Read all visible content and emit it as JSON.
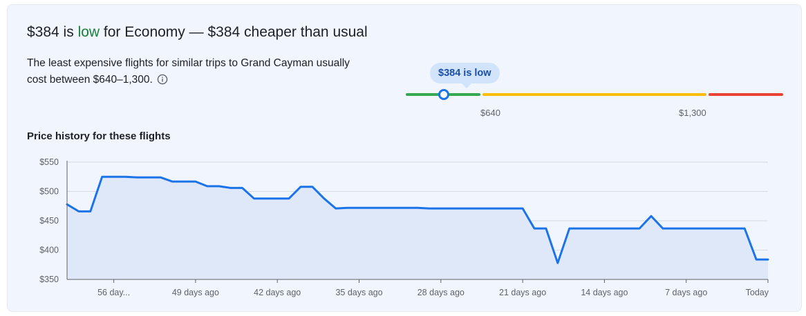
{
  "header": {
    "price": "$384",
    "is_word": " is ",
    "status_word": "low",
    "rest": " for Economy — $384 cheaper than usual"
  },
  "description": "The least expensive flights for similar trips to Grand Cayman usually cost between $640–1,300.",
  "gauge": {
    "bubble_text": "$384 is low",
    "low_label": "$640",
    "high_label": "$1,300",
    "colors": {
      "low": "#34a853",
      "typical": "#fbbc04",
      "high": "#ea4335"
    }
  },
  "chart_title": "Price history for these flights",
  "chart_data": {
    "type": "area",
    "title": "Price history for these flights",
    "xlabel": "",
    "ylabel": "",
    "ylim": [
      350,
      550
    ],
    "xlim": [
      -60,
      0
    ],
    "y_ticks": [
      {
        "value": 550,
        "label": "$550"
      },
      {
        "value": 500,
        "label": "$500"
      },
      {
        "value": 450,
        "label": "$450"
      },
      {
        "value": 400,
        "label": "$400"
      },
      {
        "value": 350,
        "label": "$350"
      }
    ],
    "x_ticks": [
      {
        "value": -56,
        "label": "56 day..."
      },
      {
        "value": -49,
        "label": "49 days ago"
      },
      {
        "value": -42,
        "label": "42 days ago"
      },
      {
        "value": -35,
        "label": "35 days ago"
      },
      {
        "value": -28,
        "label": "28 days ago"
      },
      {
        "value": -21,
        "label": "21 days ago"
      },
      {
        "value": -14,
        "label": "14 days ago"
      },
      {
        "value": -7,
        "label": "7 days ago"
      },
      {
        "value": 0,
        "label": "Today"
      }
    ],
    "grid": true,
    "line_color": "#1a73e8",
    "fill_color": "#dfe8f9",
    "x": [
      -60,
      -59,
      -58,
      -57,
      -56,
      -55,
      -54,
      -53,
      -52,
      -51,
      -50,
      -49,
      -48,
      -47,
      -46,
      -45,
      -44,
      -43,
      -42,
      -41,
      -40,
      -39,
      -38,
      -37,
      -36,
      -35,
      -34,
      -33,
      -32,
      -31,
      -30,
      -29,
      -28,
      -27,
      -26,
      -25,
      -24,
      -23,
      -22,
      -21,
      -20,
      -19,
      -18,
      -17,
      -16,
      -15,
      -14,
      -13,
      -12,
      -11,
      -10,
      -9,
      -8,
      -7,
      -6,
      -5,
      -4,
      -3,
      -2,
      -1,
      0
    ],
    "y": [
      478,
      466,
      466,
      525,
      525,
      525,
      524,
      524,
      524,
      517,
      517,
      517,
      509,
      509,
      506,
      506,
      488,
      488,
      488,
      488,
      508,
      508,
      488,
      471,
      472,
      472,
      472,
      472,
      472,
      472,
      472,
      471,
      471,
      471,
      471,
      471,
      471,
      471,
      471,
      471,
      437,
      437,
      378,
      437,
      437,
      437,
      437,
      437,
      437,
      437,
      458,
      437,
      437,
      437,
      437,
      437,
      437,
      437,
      437,
      384,
      384
    ]
  }
}
